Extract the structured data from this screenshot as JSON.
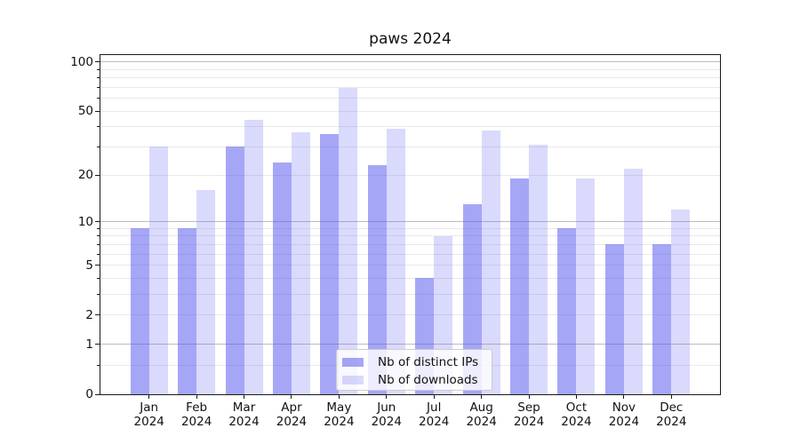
{
  "title": "paws 2024",
  "chart_data": {
    "type": "bar",
    "title": "paws 2024",
    "xlabel": "",
    "ylabel": "",
    "x_categories": [
      "Jan",
      "Feb",
      "Mar",
      "Apr",
      "May",
      "Jun",
      "Jul",
      "Aug",
      "Sep",
      "Oct",
      "Nov",
      "Dec"
    ],
    "x_year": "2024",
    "series": [
      {
        "name": "Nb of distinct IPs",
        "values": [
          9,
          9,
          30,
          24,
          36,
          23,
          4,
          13,
          19,
          9,
          7,
          7
        ],
        "fill": "rgba(85,85,240,0.52)"
      },
      {
        "name": "Nb of downloads",
        "values": [
          30,
          16,
          44,
          37,
          69,
          39,
          8,
          38,
          31,
          19,
          22,
          12
        ],
        "fill": "rgba(85,85,240,0.22)"
      }
    ],
    "y_scale": "log1p",
    "ylim": [
      0,
      110
    ],
    "y_ticks": [
      0,
      1,
      2,
      5,
      10,
      20,
      50,
      100
    ],
    "major_gridlines": [
      1,
      10,
      100
    ],
    "minor_gridlines": [
      0.5,
      2,
      3,
      4,
      5,
      6,
      7,
      8,
      9,
      20,
      30,
      40,
      50,
      60,
      70,
      80,
      90
    ],
    "grid": true,
    "legend_position": "lower center",
    "colors": {
      "bar_distinct_ips": "#a7a7f7",
      "bar_downloads": "#dadafb",
      "major_grid": "#bdbdbd",
      "minor_grid": "#e9e9e9",
      "spine": "#1a1a1a",
      "text": "#111111",
      "legend_border": "#cccccc"
    }
  }
}
